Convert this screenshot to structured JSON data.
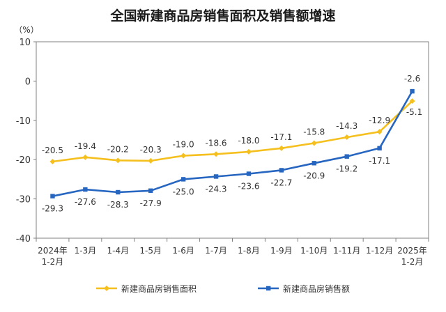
{
  "chart_data": {
    "type": "line",
    "title": "全国新建商品房销售面积及销售额增速",
    "ylabel": "（%）",
    "xlabel": "",
    "ylim": [
      -40,
      10
    ],
    "yticks": [
      10,
      0,
      -10,
      -20,
      -30,
      -40
    ],
    "grid": false,
    "legend_position": "bottom",
    "categories": [
      "2024年1-2月",
      "1-3月",
      "1-4月",
      "1-5月",
      "1-6月",
      "1-7月",
      "1-8月",
      "1-9月",
      "1-10月",
      "1-11月",
      "1-12月",
      "2025年1-2月"
    ],
    "x_tick_labels": [
      [
        "2024年",
        "1-2月"
      ],
      [
        "1-3月"
      ],
      [
        "1-4月"
      ],
      [
        "1-5月"
      ],
      [
        "1-6月"
      ],
      [
        "1-7月"
      ],
      [
        "1-8月"
      ],
      [
        "1-9月"
      ],
      [
        "1-10月"
      ],
      [
        "1-11月"
      ],
      [
        "1-12月"
      ],
      [
        "2025年",
        "1-2月"
      ]
    ],
    "series": [
      {
        "name": "新建商品房销售面积",
        "color": "#F5C01E",
        "marker": "diamond",
        "values": [
          -20.5,
          -19.4,
          -20.2,
          -20.3,
          -19.0,
          -18.6,
          -18.0,
          -17.1,
          -15.8,
          -14.3,
          -12.9,
          -5.1
        ],
        "labels": [
          "-20.5",
          "-19.4",
          "-20.2",
          "-20.3",
          "-19.0",
          "-18.6",
          "-18.0",
          "-17.1",
          "-15.8",
          "-14.3",
          "-12.9",
          "-5.1"
        ]
      },
      {
        "name": "新建商品房销售额",
        "color": "#2766C0",
        "marker": "square",
        "values": [
          -29.3,
          -27.6,
          -28.3,
          -27.9,
          -25.0,
          -24.3,
          -23.6,
          -22.7,
          -20.9,
          -19.2,
          -17.1,
          -2.6
        ],
        "labels": [
          "-29.3",
          "-27.6",
          "-28.3",
          "-27.9",
          "-25.0",
          "-24.3",
          "-23.6",
          "-22.7",
          "-20.9",
          "-19.2",
          "-17.1",
          "-2.6"
        ]
      }
    ]
  }
}
